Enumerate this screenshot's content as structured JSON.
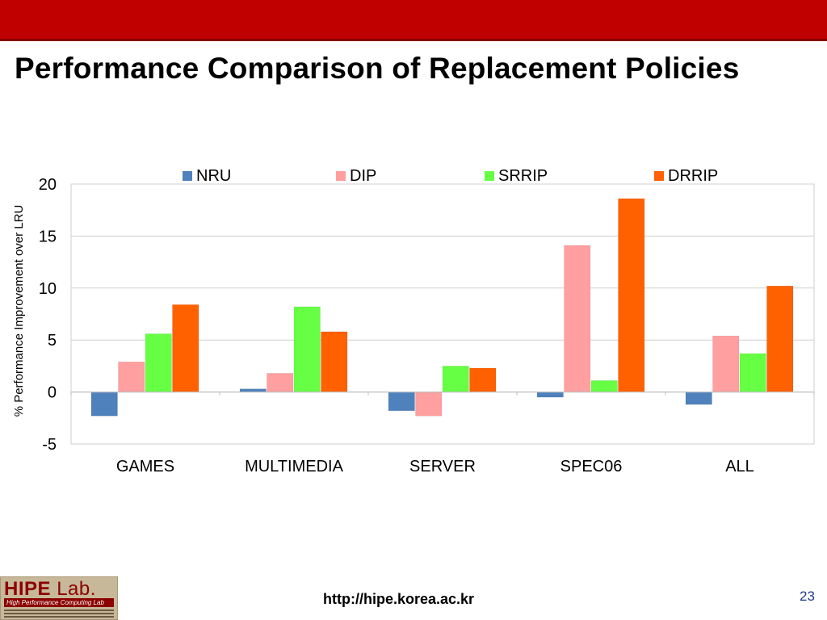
{
  "slide": {
    "title": "Performance Comparison of Replacement Policies",
    "footer_url": "http://hipe.korea.ac.kr",
    "page_number": "23",
    "logo": {
      "main": "HIPE",
      "lab": "Lab.",
      "subtitle": "High Performance Computing Lab"
    },
    "colors": {
      "top_bar": "#c00000"
    }
  },
  "chart_data": {
    "type": "bar",
    "title": "",
    "xlabel": "",
    "ylabel": "% Performance Improvement over LRU",
    "ylim": [
      -5,
      20
    ],
    "yticks": [
      -5,
      0,
      5,
      10,
      15,
      20
    ],
    "grid": true,
    "legend_position": "top",
    "categories": [
      "GAMES",
      "MULTIMEDIA",
      "SERVER",
      "SPEC06",
      "ALL"
    ],
    "series": [
      {
        "name": "NRU",
        "color": "#4f81bd",
        "values": [
          -2.3,
          0.3,
          -1.8,
          -0.5,
          -1.2
        ]
      },
      {
        "name": "DIP",
        "color": "#ff9f9f",
        "values": [
          2.9,
          1.8,
          -2.3,
          14.1,
          5.4
        ]
      },
      {
        "name": "SRRIP",
        "color": "#66ff44",
        "values": [
          5.6,
          8.2,
          2.5,
          1.1,
          3.7
        ]
      },
      {
        "name": "DRRIP",
        "color": "#ff6000",
        "values": [
          8.4,
          5.8,
          2.3,
          18.6,
          10.2
        ]
      }
    ]
  }
}
